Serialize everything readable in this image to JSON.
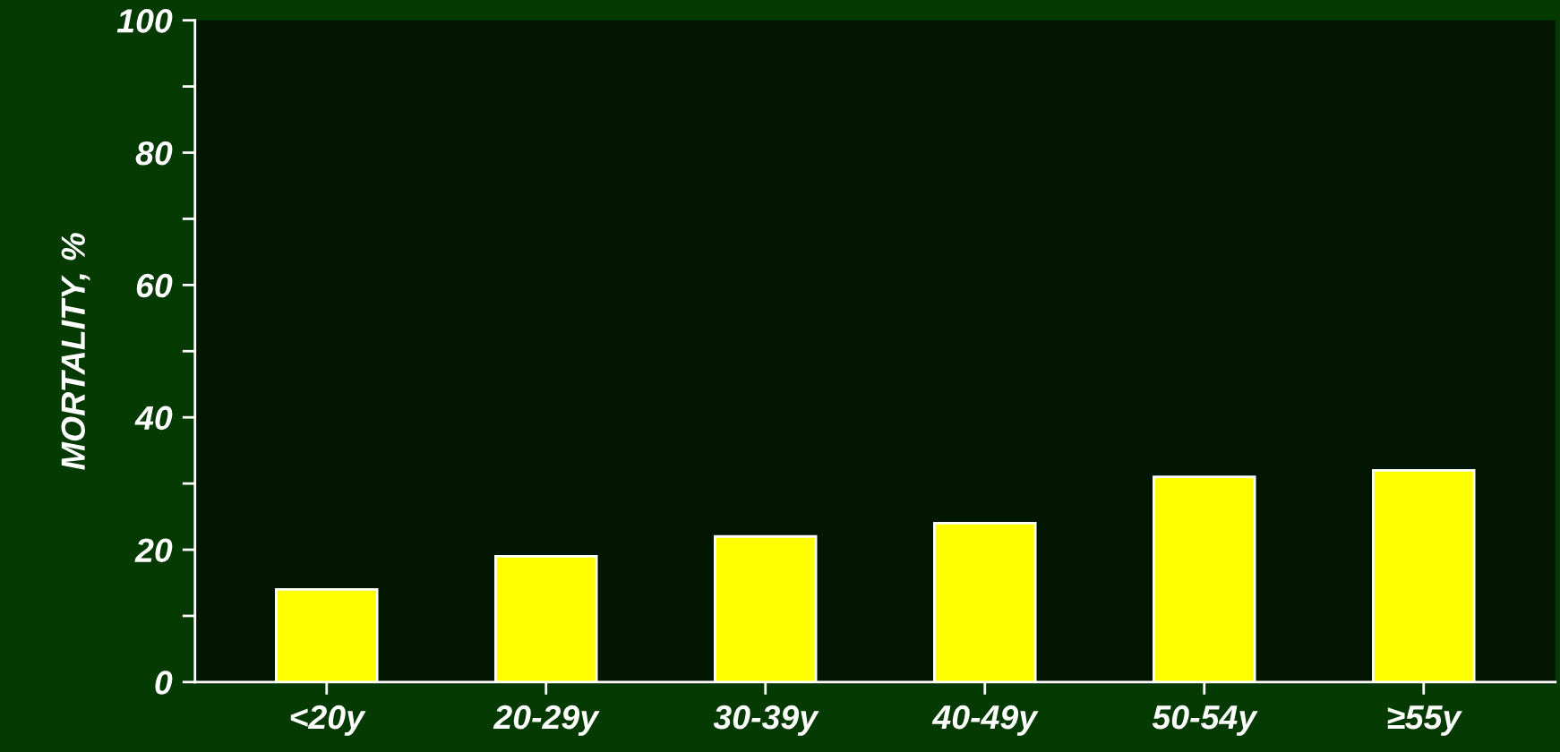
{
  "chart_data": {
    "type": "bar",
    "ylabel": "MORTALITY, %",
    "categories": [
      "<20y",
      "20-29y",
      "30-39y",
      "40-49y",
      "50-54y",
      "≥55y"
    ],
    "values": [
      14,
      19,
      22,
      24,
      31,
      32
    ],
    "color": "#ffff00",
    "ylim": [
      0,
      100
    ],
    "yticks": [
      0,
      {
        "value": 10,
        "label": null
      },
      20,
      {
        "value": 30,
        "label": null
      },
      40,
      {
        "value": 50,
        "label": null
      },
      60,
      {
        "value": 70,
        "label": null
      },
      80,
      {
        "value": 90,
        "label": null
      },
      100
    ],
    "grid": false
  }
}
